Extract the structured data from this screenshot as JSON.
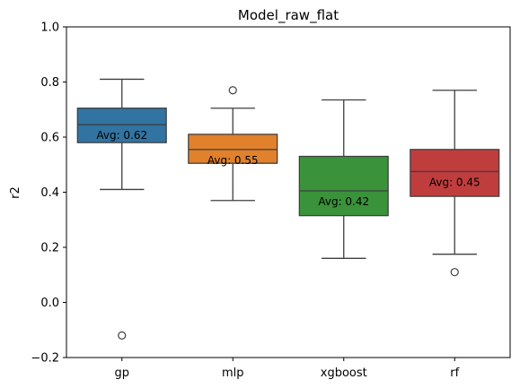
{
  "chart_data": {
    "type": "box",
    "title": "Model_raw_flat",
    "xlabel": "",
    "ylabel": "r2",
    "ylim": [
      -0.2,
      1.0
    ],
    "y_ticks": [
      "−0.2",
      "0.0",
      "0.2",
      "0.4",
      "0.6",
      "0.8",
      "1.0"
    ],
    "y_tick_values": [
      -0.2,
      0.0,
      0.2,
      0.4,
      0.6,
      0.8,
      1.0
    ],
    "categories": [
      "gp",
      "mlp",
      "xgboost",
      "rf"
    ],
    "boxes": [
      {
        "category": "gp",
        "whisker_low": 0.41,
        "q1": 0.58,
        "median": 0.645,
        "q3": 0.705,
        "whisker_high": 0.81,
        "outliers": [
          -0.12
        ],
        "avg_label": "Avg: 0.62",
        "color": "#3274a1"
      },
      {
        "category": "mlp",
        "whisker_low": 0.37,
        "q1": 0.505,
        "median": 0.555,
        "q3": 0.61,
        "whisker_high": 0.705,
        "outliers": [
          0.77
        ],
        "avg_label": "Avg: 0.55",
        "color": "#e1812c"
      },
      {
        "category": "xgboost",
        "whisker_low": 0.16,
        "q1": 0.315,
        "median": 0.405,
        "q3": 0.53,
        "whisker_high": 0.735,
        "outliers": [],
        "avg_label": "Avg: 0.42",
        "color": "#3a923a"
      },
      {
        "category": "rf",
        "whisker_low": 0.175,
        "q1": 0.385,
        "median": 0.475,
        "q3": 0.555,
        "whisker_high": 0.77,
        "outliers": [
          0.11
        ],
        "avg_label": "Avg: 0.45",
        "color": "#c03d3e"
      }
    ],
    "grid": false,
    "legend": "none"
  }
}
